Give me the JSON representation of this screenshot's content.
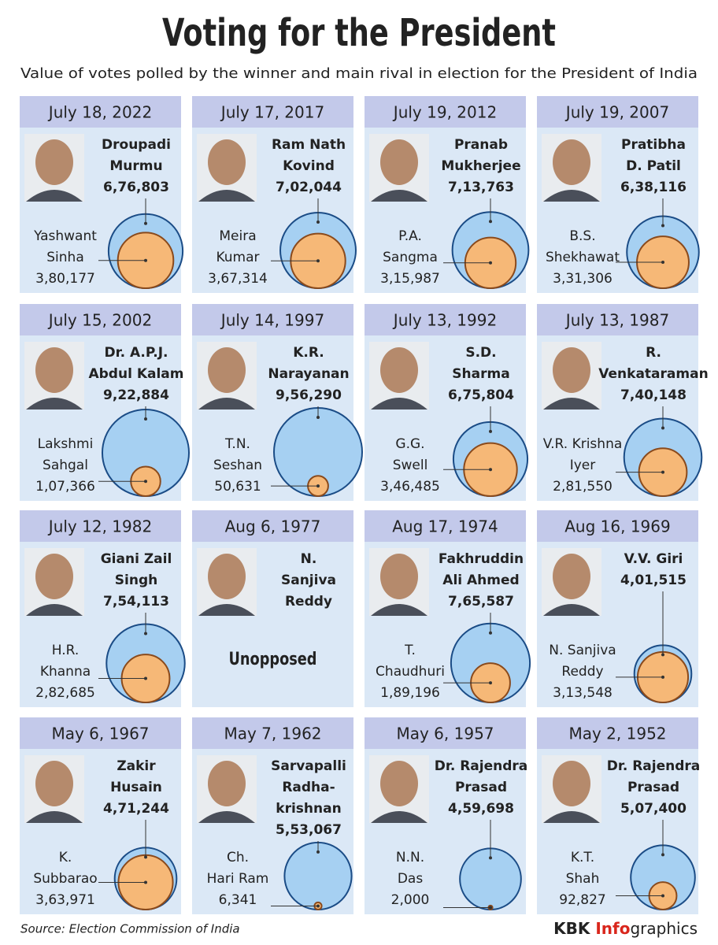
{
  "header": {
    "title": "Voting for the President",
    "subtitle": "Value of votes polled by the winner and main rival in election for the President of India"
  },
  "panels": [
    {
      "date": "July 18, 2022",
      "winner": [
        "Droupadi",
        "Murmu"
      ],
      "winner_votes": {
        "value": 676803,
        "label": "6,76,803"
      },
      "rival": [
        "Yashwant",
        "Sinha"
      ],
      "rival_votes": {
        "value": 380177,
        "label": "3,80,177"
      }
    },
    {
      "date": "July 17, 2017",
      "winner": [
        "Ram Nath",
        "Kovind"
      ],
      "winner_votes": {
        "value": 702044,
        "label": "7,02,044"
      },
      "rival": [
        "Meira",
        "Kumar"
      ],
      "rival_votes": {
        "value": 367314,
        "label": "3,67,314"
      }
    },
    {
      "date": "July 19, 2012",
      "winner": [
        "Pranab",
        "Mukherjee"
      ],
      "winner_votes": {
        "value": 713763,
        "label": "7,13,763"
      },
      "rival": [
        "P.A.",
        "Sangma"
      ],
      "rival_votes": {
        "value": 315987,
        "label": "3,15,987"
      }
    },
    {
      "date": "July 19, 2007",
      "winner": [
        "Pratibha",
        "D. Patil"
      ],
      "winner_votes": {
        "value": 638116,
        "label": "6,38,116"
      },
      "rival": [
        "B.S.",
        "Shekhawat"
      ],
      "rival_votes": {
        "value": 331306,
        "label": "3,31,306"
      }
    },
    {
      "date": "July 15, 2002",
      "winner": [
        "Dr. A.P.J.",
        "Abdul Kalam"
      ],
      "winner_votes": {
        "value": 922884,
        "label": "9,22,884"
      },
      "rival": [
        "Lakshmi",
        "Sahgal"
      ],
      "rival_votes": {
        "value": 107366,
        "label": "1,07,366"
      }
    },
    {
      "date": "July 14, 1997",
      "winner": [
        "K.R.",
        "Narayanan"
      ],
      "winner_votes": {
        "value": 956290,
        "label": "9,56,290"
      },
      "rival": [
        "T.N.",
        "Seshan"
      ],
      "rival_votes": {
        "value": 50631,
        "label": "50,631"
      }
    },
    {
      "date": "July 13, 1992",
      "winner": [
        "S.D.",
        "Sharma"
      ],
      "winner_votes": {
        "value": 675804,
        "label": "6,75,804"
      },
      "rival": [
        "G.G.",
        "Swell"
      ],
      "rival_votes": {
        "value": 346485,
        "label": "3,46,485"
      }
    },
    {
      "date": "July 13, 1987",
      "winner": [
        "R.",
        "Venkataraman"
      ],
      "winner_votes": {
        "value": 740148,
        "label": "7,40,148"
      },
      "rival": [
        "V.R. Krishna",
        "Iyer"
      ],
      "rival_votes": {
        "value": 281550,
        "label": "2,81,550"
      }
    },
    {
      "date": "July 12, 1982",
      "winner": [
        "Giani Zail",
        "Singh"
      ],
      "winner_votes": {
        "value": 754113,
        "label": "7,54,113"
      },
      "rival": [
        "H.R.",
        "Khanna"
      ],
      "rival_votes": {
        "value": 282685,
        "label": "2,82,685"
      }
    },
    {
      "date": "Aug 6, 1977",
      "winner": [
        "N.",
        "Sanjiva",
        "Reddy"
      ],
      "note": "Unopposed"
    },
    {
      "date": "Aug 17, 1974",
      "winner": [
        "Fakhruddin",
        "Ali Ahmed"
      ],
      "winner_votes": {
        "value": 765587,
        "label": "7,65,587"
      },
      "rival": [
        "T.",
        "Chaudhuri"
      ],
      "rival_votes": {
        "value": 189196,
        "label": "1,89,196"
      }
    },
    {
      "date": "Aug 16, 1969",
      "winner": [
        "V.V. Giri"
      ],
      "winner_votes": {
        "value": 401515,
        "label": "4,01,515"
      },
      "rival": [
        "N. Sanjiva",
        "Reddy"
      ],
      "rival_votes": {
        "value": 313548,
        "label": "3,13,548"
      }
    },
    {
      "date": "May 6, 1967",
      "winner": [
        "Zakir",
        "Husain"
      ],
      "winner_votes": {
        "value": 471244,
        "label": "4,71,244"
      },
      "rival": [
        "K.",
        "Subbarao"
      ],
      "rival_votes": {
        "value": 363971,
        "label": "3,63,971"
      }
    },
    {
      "date": "May 7, 1962",
      "winner": [
        "Sarvapalli",
        "Radha-",
        "krishnan"
      ],
      "winner_votes": {
        "value": 553067,
        "label": "5,53,067"
      },
      "rival": [
        "Ch.",
        "Hari Ram"
      ],
      "rival_votes": {
        "value": 6341,
        "label": "6,341"
      }
    },
    {
      "date": "May 6, 1957",
      "winner": [
        "Dr. Rajendra",
        "Prasad"
      ],
      "winner_votes": {
        "value": 459698,
        "label": "4,59,698"
      },
      "rival": [
        "N.N.",
        "Das"
      ],
      "rival_votes": {
        "value": 2000,
        "label": "2,000"
      }
    },
    {
      "date": "May 2, 1952",
      "winner": [
        "Dr. Rajendra",
        "Prasad"
      ],
      "winner_votes": {
        "value": 507400,
        "label": "5,07,400"
      },
      "rival": [
        "K.T.",
        "Shah"
      ],
      "rival_votes": {
        "value": 92827,
        "label": "92,827"
      }
    }
  ],
  "footer": {
    "source": "Source: Election Commission of India",
    "brand": [
      "KBK ",
      "Info",
      "graphics"
    ]
  }
}
